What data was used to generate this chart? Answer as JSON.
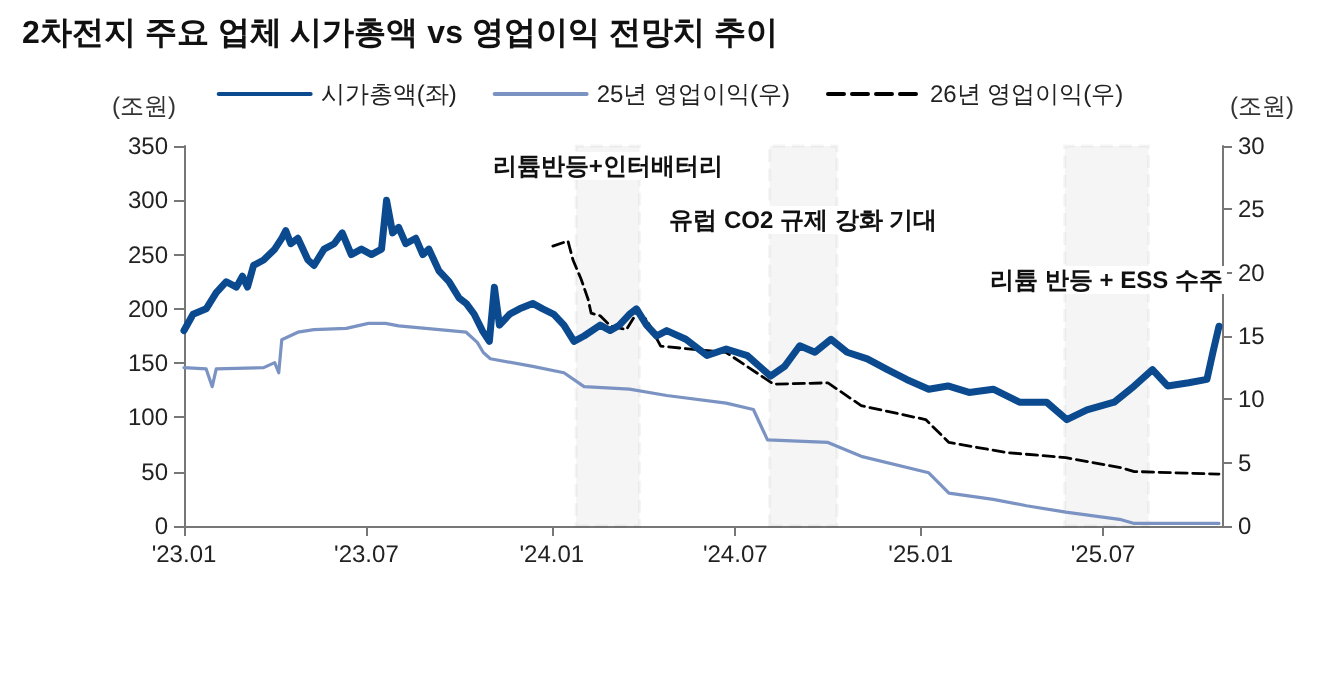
{
  "chart_data": {
    "type": "line",
    "title": "2차전지 주요 업체 시가총액 vs 영업이익 전망치 추이",
    "ylabel": "(조원)",
    "y2label": "(조원)",
    "xlim": [
      "2023-01-01",
      "2025-10-27"
    ],
    "xticks": [
      {
        "value": "2023-01-01",
        "label": "'23.01"
      },
      {
        "value": "2023-07-01",
        "label": "'23.07"
      },
      {
        "value": "2024-01-01",
        "label": "'24.01"
      },
      {
        "value": "2024-07-01",
        "label": "'24.07"
      },
      {
        "value": "2025-01-01",
        "label": "'25.01"
      },
      {
        "value": "2025-07-01",
        "label": "'25.07"
      }
    ],
    "ylim": [
      0,
      350
    ],
    "yticks": [
      0,
      50,
      100,
      150,
      200,
      250,
      300,
      350
    ],
    "y2lim": [
      0,
      30
    ],
    "y2ticks": [
      0,
      5,
      10,
      15,
      20,
      25,
      30
    ],
    "grid": false,
    "legend": "top",
    "marker": "none",
    "series": [
      {
        "name": "시가총액(좌)",
        "color": "#0b4a8f",
        "x": [
          "2023-01-01",
          "2023-01-10",
          "2023-01-23",
          "2023-02-02",
          "2023-02-12",
          "2023-02-22",
          "2023-02-28",
          "2023-03-05",
          "2023-03-11",
          "2023-03-21",
          "2023-04-01",
          "2023-04-08",
          "2023-04-12",
          "2023-04-17",
          "2023-04-24",
          "2023-05-04",
          "2023-05-10",
          "2023-05-20",
          "2023-05-30",
          "2023-06-07",
          "2023-06-16",
          "2023-06-26",
          "2023-07-06",
          "2023-07-16",
          "2023-07-21",
          "2023-07-27",
          "2023-08-02",
          "2023-08-09",
          "2023-08-19",
          "2023-08-26",
          "2023-09-01",
          "2023-09-11",
          "2023-09-21",
          "2023-10-01",
          "2023-10-08",
          "2023-10-16",
          "2023-10-24",
          "2023-10-31",
          "2023-11-05",
          "2023-11-10",
          "2023-11-20",
          "2023-11-30",
          "2023-12-13",
          "2023-12-23",
          "2024-01-03",
          "2024-01-13",
          "2024-01-23",
          "2024-02-02",
          "2024-02-18",
          "2024-02-28",
          "2024-03-08",
          "2024-03-18",
          "2024-03-25",
          "2024-04-04",
          "2024-04-14",
          "2024-04-24",
          "2024-05-13",
          "2024-06-03",
          "2024-06-22",
          "2024-07-13",
          "2024-08-05",
          "2024-08-19",
          "2024-09-03",
          "2024-09-18",
          "2024-10-04",
          "2024-10-20",
          "2024-11-09",
          "2024-11-29",
          "2024-12-18",
          "2025-01-09",
          "2025-01-28",
          "2025-02-18",
          "2025-03-14",
          "2025-04-09",
          "2025-05-06",
          "2025-05-26",
          "2025-06-15",
          "2025-07-12",
          "2025-08-01",
          "2025-08-19",
          "2025-09-03",
          "2025-09-24",
          "2025-10-12",
          "2025-10-18",
          "2025-10-24"
        ],
        "values": [
          180,
          195,
          200,
          215,
          225,
          220,
          230,
          220,
          240,
          245,
          255,
          265,
          272,
          260,
          265,
          245,
          240,
          255,
          260,
          270,
          250,
          255,
          250,
          255,
          300,
          270,
          275,
          260,
          265,
          250,
          255,
          235,
          225,
          210,
          205,
          195,
          180,
          170,
          220,
          185,
          195,
          200,
          205,
          200,
          195,
          185,
          170,
          175,
          185,
          180,
          185,
          195,
          200,
          185,
          175,
          180,
          172,
          157,
          163,
          157,
          138,
          147,
          166,
          160,
          172,
          160,
          154,
          144,
          135,
          126,
          129,
          123,
          126,
          114,
          114,
          98,
          107,
          114,
          129,
          144,
          129,
          132,
          135,
          160,
          184
        ]
      },
      {
        "name": "25년 영업이익(우)",
        "color": "#7b93c2",
        "axis": "y2",
        "x": [
          "2023-01-01",
          "2023-01-23",
          "2023-01-29",
          "2023-02-02",
          "2023-03-21",
          "2023-04-01",
          "2023-04-05",
          "2023-04-08",
          "2023-04-24",
          "2023-05-10",
          "2023-06-11",
          "2023-07-03",
          "2023-07-20",
          "2023-08-02",
          "2023-10-08",
          "2023-10-19",
          "2023-10-25",
          "2023-11-01",
          "2023-12-13",
          "2024-01-13",
          "2024-02-02",
          "2024-03-18",
          "2024-04-24",
          "2024-06-22",
          "2024-07-19",
          "2024-08-02",
          "2024-10-01",
          "2024-11-03",
          "2025-01-09",
          "2025-01-29",
          "2025-03-14",
          "2025-04-16",
          "2025-05-25",
          "2025-07-19",
          "2025-08-01",
          "2025-10-24"
        ],
        "values": [
          12.5,
          12.4,
          11.0,
          12.4,
          12.5,
          12.9,
          12.1,
          14.7,
          15.3,
          15.5,
          15.6,
          16.0,
          16.0,
          15.8,
          15.3,
          14.5,
          13.7,
          13.2,
          12.6,
          12.1,
          11.0,
          10.8,
          10.3,
          9.7,
          9.2,
          6.8,
          6.6,
          5.5,
          4.2,
          2.6,
          2.1,
          1.6,
          1.1,
          0.5,
          0.2,
          0.2
        ]
      },
      {
        "name": "26년 영업이익(우)",
        "color": "#000000",
        "axis": "y2",
        "line_style": "dashed",
        "x": [
          "2024-01-02",
          "2024-01-17",
          "2024-01-22",
          "2024-01-30",
          "2024-02-06",
          "2024-02-09",
          "2024-02-18",
          "2024-02-28",
          "2024-03-15",
          "2024-03-25",
          "2024-04-04",
          "2024-04-18",
          "2024-06-22",
          "2024-08-08",
          "2024-10-01",
          "2024-11-03",
          "2025-01-06",
          "2025-01-29",
          "2025-03-27",
          "2025-05-25",
          "2025-07-19",
          "2025-08-01",
          "2025-10-24"
        ],
        "values": [
          22.1,
          22.5,
          21.0,
          19.5,
          17.9,
          16.8,
          16.6,
          15.8,
          15.5,
          16.8,
          16.3,
          14.2,
          13.7,
          11.2,
          11.3,
          9.5,
          8.4,
          6.6,
          5.8,
          5.4,
          4.6,
          4.3,
          4.1
        ]
      }
    ],
    "bands": [
      {
        "axis": "x",
        "from": "2024-01-25",
        "to": "2024-03-28",
        "color": "#000000",
        "label": "리튬반등+인터배터리"
      },
      {
        "axis": "x",
        "from": "2024-08-04",
        "to": "2024-10-10",
        "color": "#000000",
        "label": "유럽 CO2 규제 강화 기대"
      },
      {
        "axis": "x",
        "from": "2025-05-24",
        "to": "2025-08-15",
        "color": "#000000",
        "label": "리튬 반등 + ESS 수주"
      }
    ]
  }
}
